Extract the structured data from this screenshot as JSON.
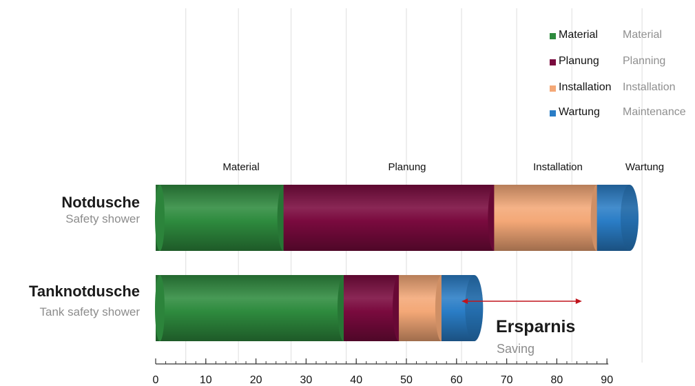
{
  "chart_data": {
    "type": "bar",
    "orientation": "horizontal",
    "stacked": true,
    "categories": [
      {
        "name": "Notdusche",
        "subtitle": "Safety shower"
      },
      {
        "name": "Tanknotdusche",
        "subtitle": "Tank safety shower"
      }
    ],
    "series": [
      {
        "name": "Material",
        "name_en": "Material",
        "color": "#2e8b3e",
        "values": [
          25.5,
          37.5
        ]
      },
      {
        "name": "Planung",
        "name_en": "Planning",
        "color": "#7a0a3e",
        "values": [
          42,
          11
        ]
      },
      {
        "name": "Installation",
        "name_en": "Installation",
        "color": "#f4a877",
        "values": [
          20.5,
          8.5
        ]
      },
      {
        "name": "Wartung",
        "name_en": "Maintenance",
        "color": "#2a7dc6",
        "values": [
          6.5,
          6.5
        ]
      }
    ],
    "segment_labels": [
      "Material",
      "Planung",
      "Installation",
      "Wartung"
    ],
    "x_ticks": [
      0,
      10,
      20,
      30,
      40,
      50,
      60,
      70,
      80,
      90
    ],
    "xlim": [
      0,
      90
    ],
    "minor_tick_step": 2,
    "grid": true,
    "legend_position": "top-right",
    "annotation": {
      "label": "Ersparnis",
      "label_en": "Saving",
      "from": 61,
      "to": 85,
      "color": "#c0141c"
    }
  }
}
